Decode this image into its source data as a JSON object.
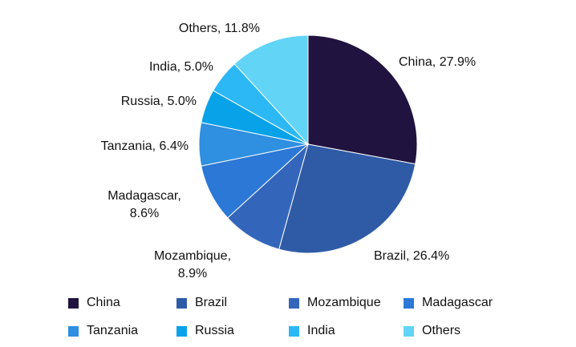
{
  "chart_data": {
    "type": "pie",
    "categories": [
      "China",
      "Brazil",
      "Mozambique",
      "Madagascar",
      "Tanzania",
      "Russia",
      "India",
      "Others"
    ],
    "values": [
      27.9,
      26.4,
      8.9,
      8.6,
      6.4,
      5.0,
      5.0,
      11.8
    ],
    "value_labels": [
      "China, 27.9%",
      "Brazil, 26.4%",
      "Mozambique, 8.9%",
      "Madagascar, 8.6%",
      "Tanzania, 6.4%",
      "Russia, 5.0%",
      "India, 5.0%",
      "Others, 11.8%"
    ],
    "colors": [
      "#211340",
      "#2f5ba6",
      "#3366bb",
      "#2b78d6",
      "#2f8fe0",
      "#08a2e9",
      "#2cb8f4",
      "#62d4f6"
    ],
    "legend": "bottom"
  }
}
